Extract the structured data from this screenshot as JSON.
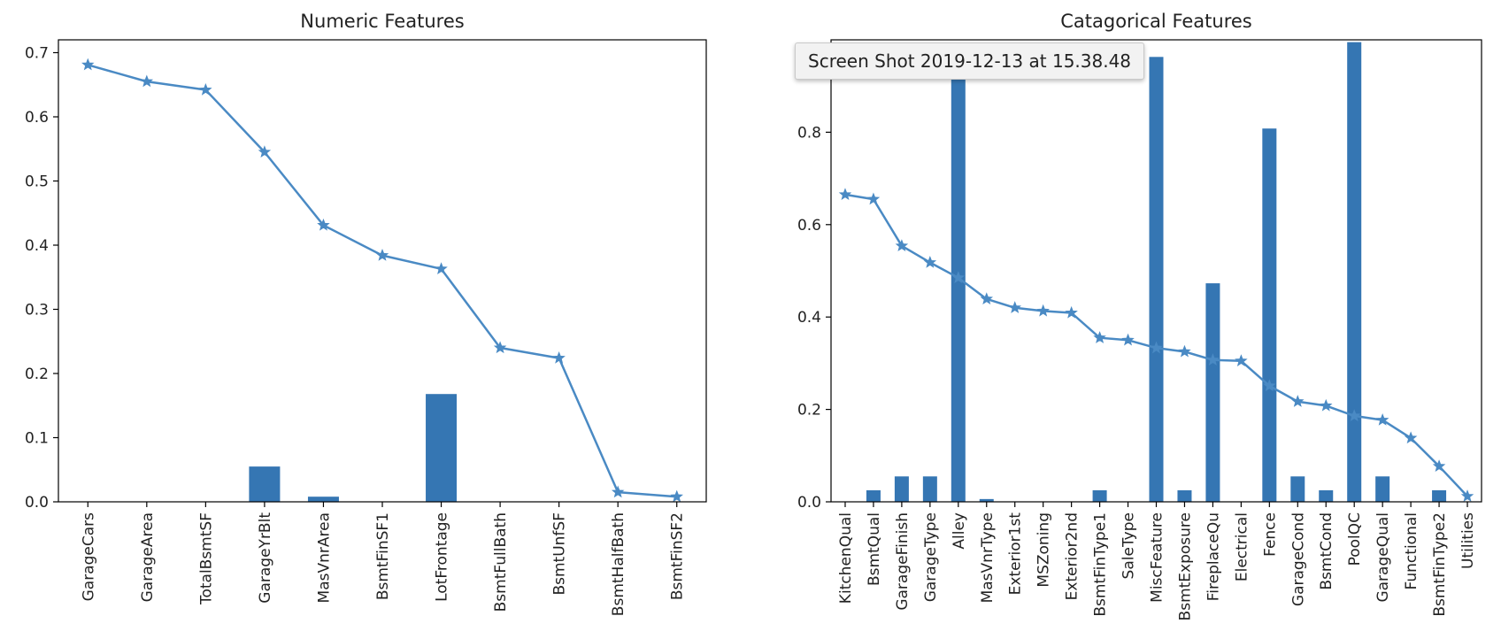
{
  "tooltip": {
    "text": "Screen Shot 2019-12-13 at 15.38.48"
  },
  "colors": {
    "bar": "#3576b3",
    "line": "#4a8ac4",
    "axis": "#000000"
  },
  "chart_data": [
    {
      "type": "bar+line",
      "title": "Numeric Features",
      "categories": [
        "GarageCars",
        "GarageArea",
        "TotalBsmtSF",
        "GarageYrBlt",
        "MasVnrArea",
        "BsmtFinSF1",
        "LotFrontage",
        "BsmtFullBath",
        "BsmtUnfSF",
        "BsmtHalfBath",
        "BsmtFinSF2"
      ],
      "series": [
        {
          "type": "bar",
          "values": [
            0,
            0,
            0,
            0.055,
            0.008,
            0,
            0.168,
            0,
            0,
            0,
            0
          ]
        },
        {
          "type": "line",
          "marker": "star",
          "values": [
            0.681,
            0.655,
            0.642,
            0.545,
            0.431,
            0.384,
            0.363,
            0.24,
            0.224,
            0.015,
            0.008
          ]
        }
      ],
      "ylim": [
        0,
        0.72
      ],
      "yticks": [
        "0.0",
        "0.1",
        "0.2",
        "0.3",
        "0.4",
        "0.5",
        "0.6",
        "0.7"
      ],
      "xlabel": "",
      "ylabel": ""
    },
    {
      "type": "bar+line",
      "title": "Catagorical Features",
      "categories": [
        "KitchenQual",
        "BsmtQual",
        "GarageFinish",
        "GarageType",
        "Alley",
        "MasVnrType",
        "Exterior1st",
        "MSZoning",
        "Exterior2nd",
        "BsmtFinType1",
        "SaleType",
        "MiscFeature",
        "BsmtExposure",
        "FireplaceQu",
        "Electrical",
        "Fence",
        "GarageCond",
        "BsmtCond",
        "PoolQC",
        "GarageQual",
        "Functional",
        "BsmtFinType2",
        "Utilities"
      ],
      "series": [
        {
          "type": "bar",
          "values": [
            0,
            0.025,
            0.055,
            0.055,
            0.937,
            0.006,
            0,
            0,
            0,
            0.025,
            0,
            0.963,
            0.025,
            0.473,
            0,
            0.808,
            0.055,
            0.025,
            0.995,
            0.055,
            0,
            0.025,
            0
          ]
        },
        {
          "type": "line",
          "marker": "star",
          "values": [
            0.665,
            0.655,
            0.554,
            0.518,
            0.485,
            0.439,
            0.42,
            0.413,
            0.409,
            0.355,
            0.35,
            0.333,
            0.325,
            0.307,
            0.305,
            0.251,
            0.217,
            0.208,
            0.186,
            0.177,
            0.138,
            0.077,
            0.012
          ]
        }
      ],
      "ylim": [
        0,
        1.0
      ],
      "yticks": [
        "0.0",
        "0.2",
        "0.4",
        "0.6",
        "0.8"
      ],
      "xlabel": "",
      "ylabel": ""
    }
  ]
}
